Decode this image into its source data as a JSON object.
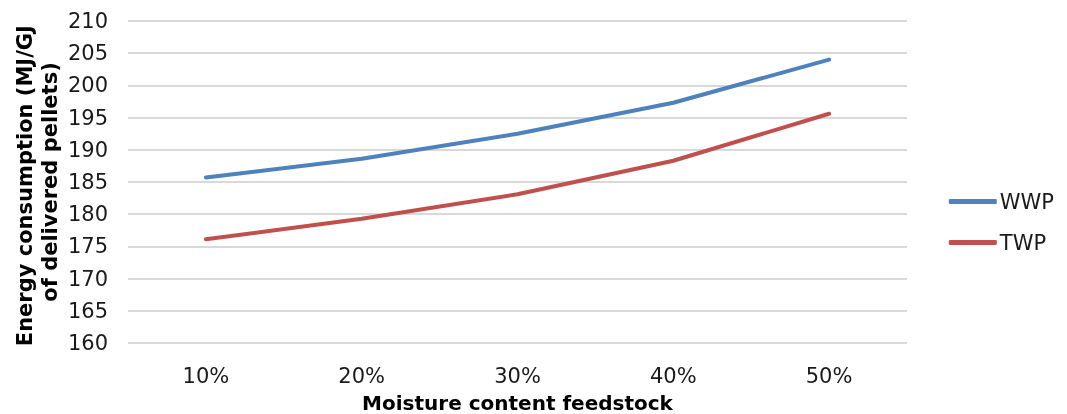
{
  "chart_data": {
    "type": "line",
    "xlabel": "Moisture content feedstock",
    "ylabel": "Energy consumption (MJ/GJ of delivered pellets)",
    "categories": [
      "10%",
      "20%",
      "30%",
      "40%",
      "50%"
    ],
    "series": [
      {
        "name": "WWP",
        "color": "#4f81bd",
        "values": [
          185.7,
          188.6,
          192.5,
          197.3,
          204.0
        ]
      },
      {
        "name": "TWP",
        "color": "#c0504d",
        "values": [
          176.1,
          179.3,
          183.1,
          188.3,
          195.6
        ]
      }
    ],
    "ylim": [
      160,
      210
    ],
    "yticks": [
      160,
      165,
      170,
      175,
      180,
      185,
      190,
      195,
      200,
      205,
      210
    ],
    "grid": "y",
    "legend": "right",
    "marker": "none",
    "line_style": "solid"
  }
}
